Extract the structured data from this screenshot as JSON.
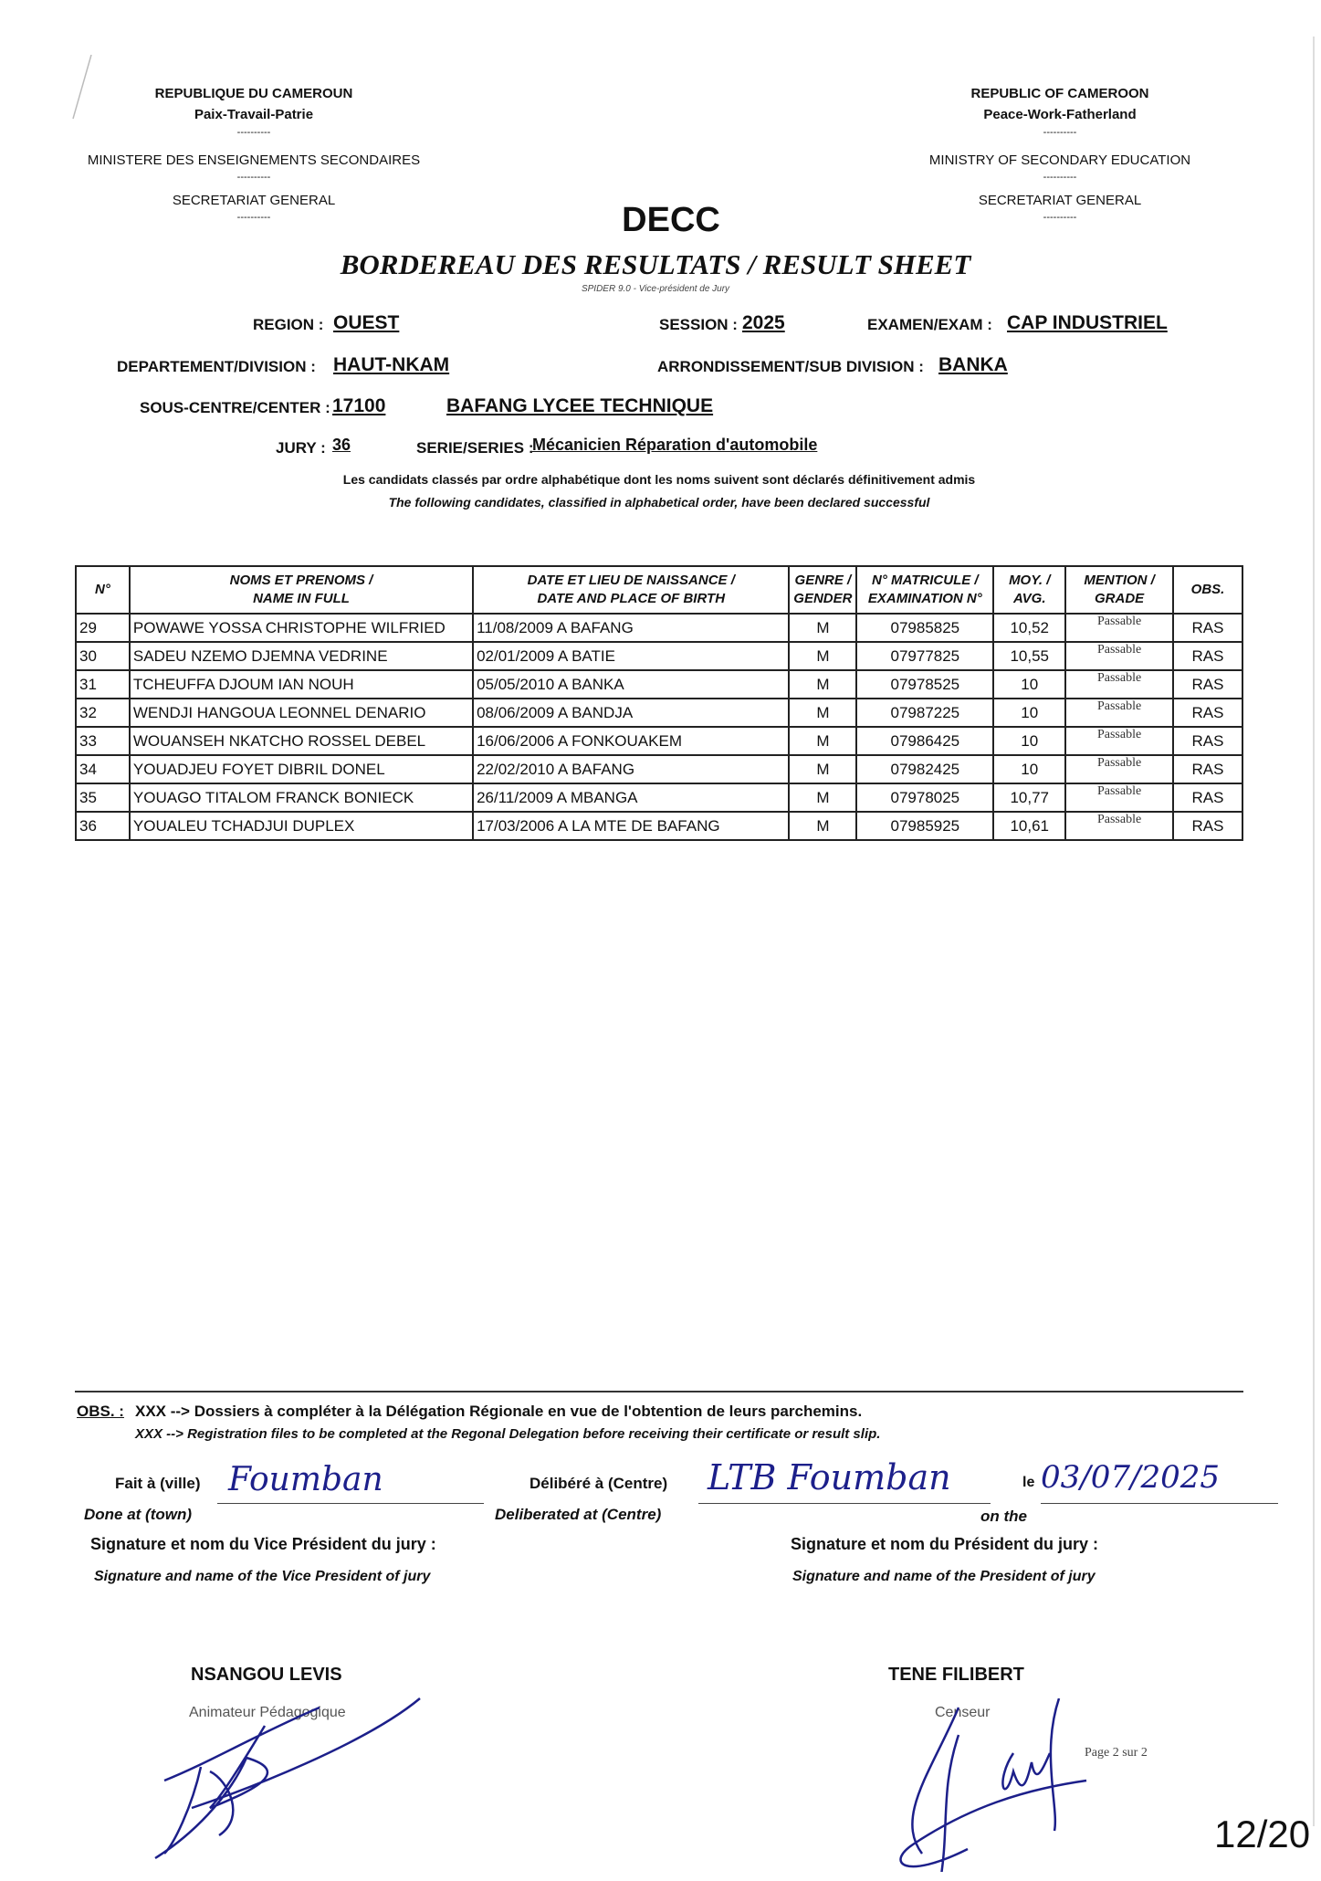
{
  "header_left": {
    "country": "REPUBLIQUE DU CAMEROUN",
    "motto": "Paix-Travail-Patrie",
    "separator": "----------",
    "ministry": "MINISTERE DES ENSEIGNEMENTS SECONDAIRES",
    "secretariat": "SECRETARIAT GENERAL"
  },
  "header_right": {
    "country": "REPUBLIC OF CAMEROON",
    "motto": "Peace-Work-Fatherland",
    "separator": "----------",
    "ministry": "MINISTRY OF SECONDARY EDUCATION",
    "secretariat": "SECRETARIAT GENERAL"
  },
  "org": "DECC",
  "title": "BORDEREAU DES RESULTATS / RESULT SHEET",
  "subtitle": "SPIDER 9.0 - Vice-président de Jury",
  "info": {
    "region_label": "REGION :",
    "region": "OUEST",
    "session_label": "SESSION :",
    "session": "2025",
    "exam_label": "EXAMEN/EXAM :",
    "exam": "CAP INDUSTRIEL",
    "division_label": "DEPARTEMENT/DIVISION :",
    "division": "HAUT-NKAM",
    "subdivision_label": "ARRONDISSEMENT/SUB DIVISION :",
    "subdivision": "BANKA",
    "center_label": "SOUS-CENTRE/CENTER :",
    "center_code": "17100",
    "center_name": "BAFANG LYCEE TECHNIQUE",
    "jury_label": "JURY :",
    "jury": "36",
    "series_label": "SERIE/SERIES :",
    "series": "Mécanicien Réparation d'automobile"
  },
  "intro_fr": "Les candidats classés par ordre alphabétique dont les noms suivent sont déclarés définitivement admis",
  "intro_en": "The following candidates, classified in alphabetical order, have been declared successful",
  "table": {
    "headers": [
      [
        "N°",
        ""
      ],
      [
        "NOMS ET PRENOMS /",
        "NAME IN FULL"
      ],
      [
        "DATE ET LIEU DE NAISSANCE /",
        "DATE AND PLACE OF BIRTH"
      ],
      [
        "GENRE /",
        "GENDER"
      ],
      [
        "N° MATRICULE /",
        "EXAMINATION N°"
      ],
      [
        "MOY. /",
        "AVG."
      ],
      [
        "MENTION /",
        "GRADE"
      ],
      [
        "OBS.",
        ""
      ]
    ],
    "rows": [
      [
        "29",
        "POWAWE YOSSA CHRISTOPHE WILFRIED",
        "11/08/2009 A BAFANG",
        "M",
        "07985825",
        "10,52",
        "Passable",
        "RAS"
      ],
      [
        "30",
        "SADEU NZEMO DJEMNA VEDRINE",
        "02/01/2009 A BATIE",
        "M",
        "07977825",
        "10,55",
        "Passable",
        "RAS"
      ],
      [
        "31",
        "TCHEUFFA DJOUM IAN NOUH",
        "05/05/2010 A BANKA",
        "M",
        "07978525",
        "10",
        "Passable",
        "RAS"
      ],
      [
        "32",
        "WENDJI HANGOUA LEONNEL DENARIO",
        "08/06/2009 A BANDJA",
        "M",
        "07987225",
        "10",
        "Passable",
        "RAS"
      ],
      [
        "33",
        "WOUANSEH NKATCHO ROSSEL DEBEL",
        "16/06/2006 A FONKOUAKEM",
        "M",
        "07986425",
        "10",
        "Passable",
        "RAS"
      ],
      [
        "34",
        "YOUADJEU FOYET DIBRIL DONEL",
        "22/02/2010 A BAFANG",
        "M",
        "07982425",
        "10",
        "Passable",
        "RAS"
      ],
      [
        "35",
        "YOUAGO TITALOM FRANCK BONIECK",
        "26/11/2009 A MBANGA",
        "M",
        "07978025",
        "10,77",
        "Passable",
        "RAS"
      ],
      [
        "36",
        "YOUALEU TCHADJUI DUPLEX",
        "17/03/2006 A LA MTE DE BAFANG",
        "M",
        "07985925",
        "10,61",
        "Passable",
        "RAS"
      ]
    ]
  },
  "footer": {
    "obs_label": "OBS. :",
    "obs_fr": "XXX --> Dossiers à compléter à la Délégation Régionale en vue de l'obtention de leurs parchemins.",
    "obs_en": "XXX --> Registration files to be completed at the Regonal Delegation before receiving their certificate or result slip.",
    "done_fr": "Fait à (ville)",
    "done_en": "Done at (town)",
    "done_value": "Foumban",
    "delib_fr": "Délibéré à (Centre)",
    "delib_en": "Deliberated at (Centre)",
    "delib_value": "LTB Foumban",
    "date_fr": "le",
    "date_en": "on the",
    "date_value": "03/07/2025",
    "vp_sig_fr": "Signature et nom du Vice Président du jury :",
    "vp_sig_en": "Signature and name of the Vice President of jury",
    "p_sig_fr": "Signature et nom  du Président du jury :",
    "p_sig_en": "Signature and name of the President of jury",
    "vp_name": "NSANGOU LEVIS",
    "vp_title": "Animateur Pédagogique",
    "p_name": "TENE FILIBERT",
    "p_title": "Censeur",
    "page": "Page 2 sur 2"
  },
  "page_counter": "12/20",
  "colors": {
    "ink": "#111111",
    "handwriting": "#1c1f8a"
  }
}
